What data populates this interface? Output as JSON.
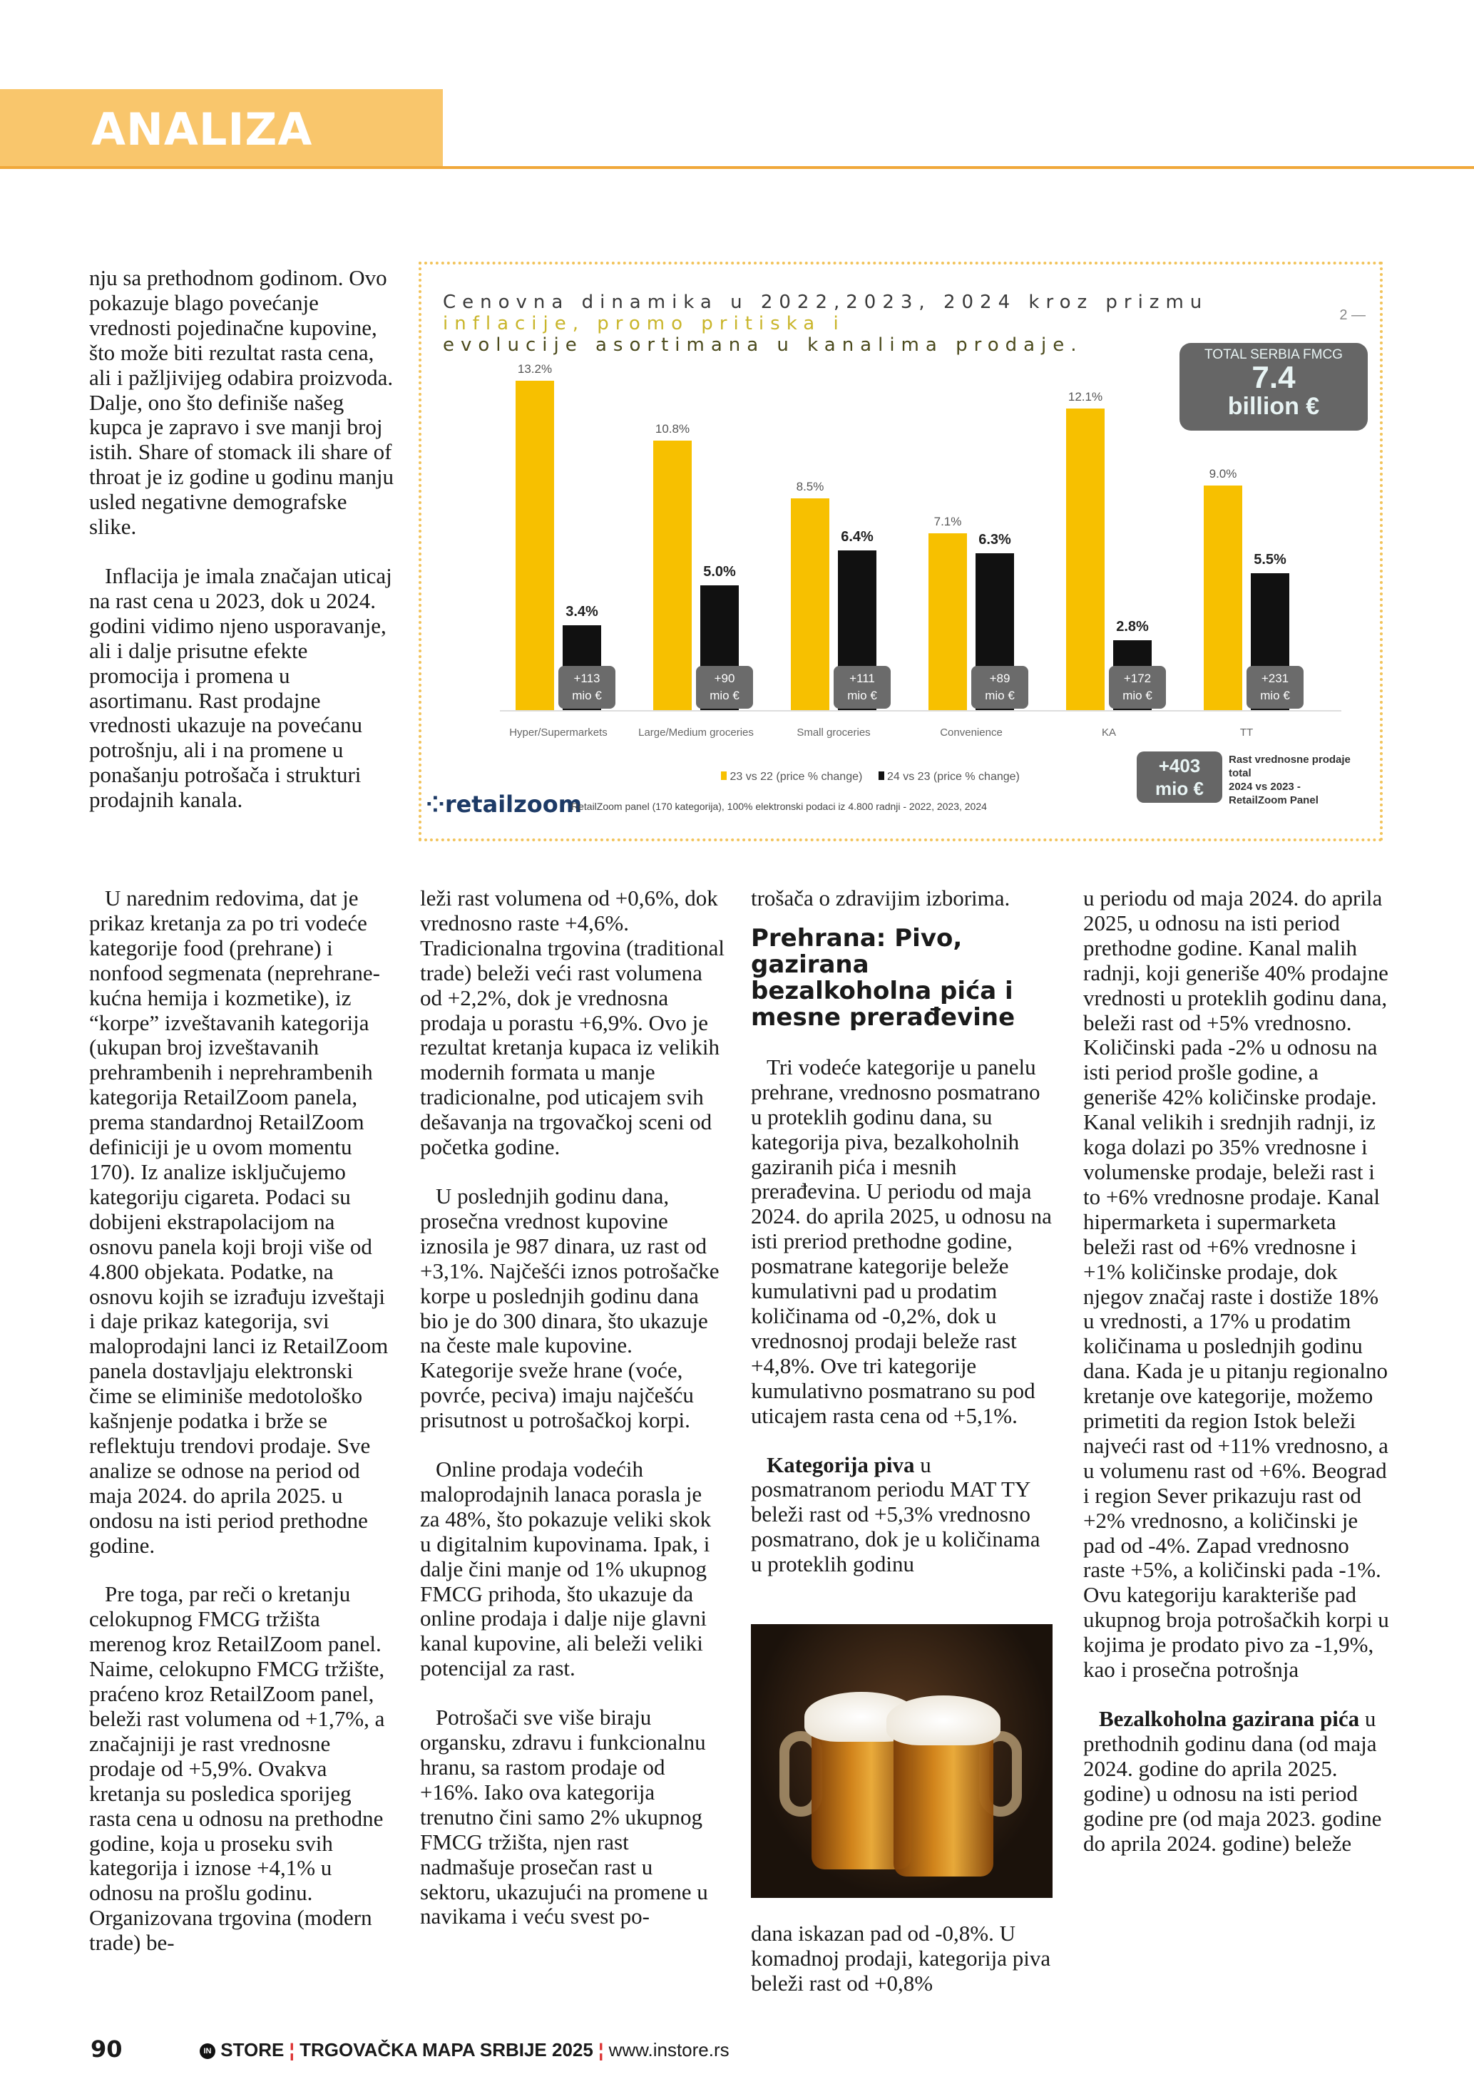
{
  "header": {
    "section": "ANALIZA"
  },
  "col1_top": [
    "nju sa prethodnom godinom. Ovo pokazuje blago povećanje vrednosti pojedinačne kupovine, što može biti rezultat rasta cena, ali i pažljivijeg odabira proizvoda. Dalje, ono što definiše našeg kupca je zapravo i sve manji broj istih. Share of stomack ili share of throat je iz godine u godinu manju usled negativne demografske slike.",
    "Inflacija je imala značajan uticaj na rast cena u 2023, dok u 2024. godini vidimo njeno usporavanje, ali i dalje prisutne efekte promocija i promena u asortimanu. Rast prodajne vrednosti ukazuje na povećanu potrošnju, ali i na promene u ponašanju potrošača i strukturi prodajnih kanala."
  ],
  "col1": [
    "U narednim redovima, dat je prikaz kretanja za po tri vodeće kategorije food (prehrane) i nonfood segmenata (neprehrane-kućna hemija i kozmetike), iz “korpe” izveštavanih kategorija (ukupan broj izveštavanih prehrambenih i neprehrambenih kategorija RetailZoom panela, prema standardnoj RetailZoom definiciji je u ovom momentu 170). Iz analize isključujemo kategoriju cigareta. Podaci su dobijeni ekstrapolacijom na osnovu panela koji broji više od 4.800 objekata. Podatke, na osnovu kojih se izrađuju izveštaji i daje prikaz kategorija, svi maloprodajni lanci iz RetailZoom panela dostavljaju elektronski čime se eliminiše medotološko kašnjenje podatka i brže se reflektuju trendovi prodaje. Sve analize se odnose na period od maja 2024. do aprila 2025. u ondosu na isti period prethodne godine.",
    "Pre toga, par reči o kretanju celokupnog FMCG tržišta merenog kroz RetailZoom panel. Naime, celokupno FMCG tržište, praćeno kroz RetailZoom panel, beleži rast volumena od +1,7%, a značajniji je rast vrednosne prodaje od +5,9%. Ovakva kretanja su posledica sporijeg rasta cena u odnosu na prethodne godine, koja u proseku svih kategorija i iznose +4,1% u odnosu na prošlu godinu. Organizovana trgovina (modern trade) be-"
  ],
  "col2": [
    "leži rast volumena od +0,6%, dok vrednosno raste +4,6%. Tradicionalna trgovina (traditional trade) beleži veći rast volumena od +2,2%, dok je vrednosna prodaja u porastu +6,9%. Ovo je rezultat kretanja kupaca iz velikih modernih formata u manje tradicionalne, pod uticajem svih dešavanja na trgovačkoj sceni od početka godine.",
    "U poslednjih godinu dana, prosečna vrednost kupovine iznosila je 987 dinara, uz rast od +3,1%. Najčešći iznos potrošačke korpe u poslednjih godinu dana bio je do 300 dinara, što ukazuje na česte male kupovine. Kategorije sveže hrane (voće, povrće, peciva) imaju najčešću prisutnost u potrošačkoj korpi.",
    "Online prodaja vodećih maloprodajnih lanaca porasla je za 48%, što pokazuje veliki skok u digitalnim kupovinama. Ipak, i dalje čini manje od 1% ukupnog FMCG prihoda, što ukazuje da online prodaja i dalje nije glavni kanal kupovine, ali beleži veliki potencijal za rast.",
    "Potrošači sve više biraju organsku, zdravu i funkcionalnu hranu, sa rastom prodaje od +16%. Iako ova kategorija trenutno čini samo 2% ukupnog FMCG tržišta, njen rast nadmašuje prosečan rast u sektoru, ukazujući na promene u navikama i veću svest po-"
  ],
  "col3": {
    "p0": "trošača o zdravijim izborima.",
    "heading": "Prehrana: Pivo, gazirana bezalkoholna pića i mesne prerađevine",
    "p1": "Tri vodeće kategorije u panelu prehrane, vrednosno posmatrano u proteklih godinu dana, su kategorija piva, bezalkoholnih gaziranih pića i mesnih prerađevina. U periodu od maja 2024. do aprila 2025, u odnosu na isti preriod prethodne godine, posmatrane kategorije beleže kumulativni pad u prodatim količinama od -0,2%, dok u vrednosnoj prodaji beleže rast +4,8%. Ove tri kategorije kumulativno posmatrano su pod uticajem rasta cena od +5,1%.",
    "p2_bold": "Kategorija piva",
    "p2": " u posmatranom periodu MAT TY beleži rast od +5,3% vrednosno posmatrano, dok je u količinama u proteklih godinu",
    "p3": "dana iskazan pad od -0,8%. U komadnoj prodaji, kategorija piva beleži rast od +0,8%"
  },
  "col4": {
    "p1": "u periodu od maja 2024. do aprila 2025, u odnosu na isti period prethodne godine. Kanal malih radnji, koji generiše 40% prodajne vrednosti u proteklih godinu dana, beleži rast od +5% vrednosno. Količinski pada -2% u odnosu na isti period prošle godine, a generiše 42% količinske prodaje. Kanal velikih i srednjih radnji, iz koga dolazi po 35% vrednosne i volumenske prodaje, beleži rast i to +6% vrednosne prodaje. Kanal hipermarketa i supermarketa beleži rast od +6% vrednosne i +1% količinske prodaje, dok njegov značaj raste i dostiže 18% u vrednosti, a 17% u prodatim količinama u poslednjih godinu dana. Kada je u pitanju regionalno kretanje ove kategorije, možemo primetiti da region Istok beleži najveći rast od +11% vrednosno, a u volumenu rast od +6%. Beograd i region Sever prikazuju rast od +2% vrednosno, a količinski je pad od -4%. Zapad vrednosno raste +5%, a količinski pada -1%. Ovu kategoriju karakteriše pad ukupnog broja potrošačkih korpi u kojima je prodato pivo za -1,9%, kao i prosečna potrošnja",
    "p2_bold": "Bezalkoholna gazirana pića",
    "p2": " u prethodnih godinu dana (od maja 2024. godine do aprila 2025. godine) u odnosu na isti period godine pre (od maja 2023. godine do aprila 2024. godine) beleže"
  },
  "chart_data": {
    "type": "bar",
    "title_lines": [
      "Cenovna dinamika u 2022,2023, 2024 kroz prizmu",
      "inflacije, promo pritiska i",
      "evolucije asortimana u kanalima prodaje."
    ],
    "page_marker": "2",
    "categories": [
      "Hyper/Supermarkets",
      "Large/Medium groceries",
      "Small groceries",
      "Convenience",
      "KA",
      "TT"
    ],
    "series": [
      {
        "name": "23 vs 22 (price % change)",
        "values": [
          13.2,
          10.8,
          8.5,
          7.1,
          12.1,
          9.0
        ],
        "color": "#f7c000"
      },
      {
        "name": "24 vs 23 (price % change)",
        "values": [
          3.4,
          5.0,
          6.4,
          6.3,
          2.8,
          5.5
        ],
        "color": "#111111"
      }
    ],
    "value_labels_series1": [
      "13.2%",
      "10.8%",
      "8.5%",
      "7.1%",
      "12.1%",
      "9.0%"
    ],
    "value_labels_series2": [
      "3.4%",
      "5.0%",
      "6.4%",
      "6.3%",
      "2.8%",
      "5.5%"
    ],
    "badges": [
      "+113",
      "+90",
      "+111",
      "+89",
      "+172",
      "+231"
    ],
    "badge_unit": "mio €",
    "legend_placement": "bottom",
    "total_box": {
      "label": "TOTAL SERBIA FMCG",
      "value": "7.4",
      "unit": "billion €"
    },
    "growth_box": {
      "value": "+403",
      "unit": "mio €",
      "caption": [
        "Rast vrednosne prodaje",
        "total",
        "2024 vs 2023 -",
        "RetailZoom Panel"
      ]
    },
    "logo": "retailzoom",
    "footnote": "RetailZoom panel (170 kategorija), 100% elektronski podaci iz 4.800 radnji - 2022, 2023, 2024"
  },
  "footer": {
    "page": "90",
    "brand": "STORE",
    "publication": "TRGOVAČKA MAPA SRBIJE 2025",
    "url": "www.instore.rs"
  }
}
